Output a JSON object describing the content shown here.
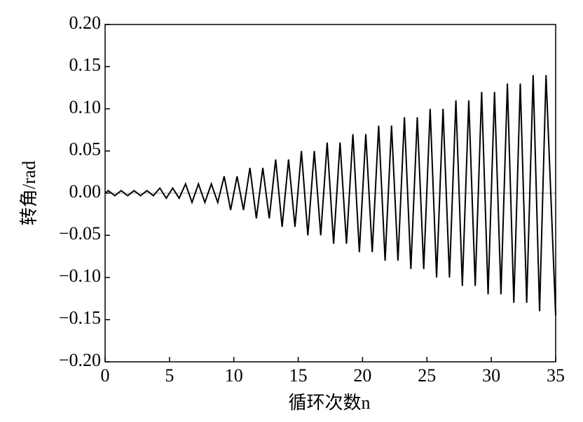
{
  "chart_data": {
    "type": "line",
    "xlabel": "循环次数n",
    "ylabel": "转角/rad",
    "x": [
      0,
      0.25,
      0.75,
      1.25,
      1.75,
      2.25,
      2.75,
      3.25,
      3.75,
      4.25,
      4.75,
      5.25,
      5.75,
      6.25,
      6.75,
      7.25,
      7.75,
      8.25,
      8.75,
      9.25,
      9.75,
      10.25,
      10.75,
      11.25,
      11.75,
      12.25,
      12.75,
      13.25,
      13.75,
      14.25,
      14.75,
      15.25,
      15.75,
      16.25,
      16.75,
      17.25,
      17.75,
      18.25,
      18.75,
      19.25,
      19.75,
      20.25,
      20.75,
      21.25,
      21.75,
      22.25,
      22.75,
      23.25,
      23.75,
      24.25,
      24.75,
      25.25,
      25.75,
      26.25,
      26.75,
      27.25,
      27.75,
      28.25,
      28.75,
      29.25,
      29.75,
      30.25,
      30.75,
      31.25,
      31.75,
      32.25,
      32.75,
      33.25,
      33.75,
      34.25,
      35
    ],
    "values": [
      0,
      0.003,
      -0.003,
      0.003,
      -0.003,
      0.003,
      -0.003,
      0.003,
      -0.003,
      0.006,
      -0.006,
      0.006,
      -0.006,
      0.011,
      -0.011,
      0.011,
      -0.011,
      0.011,
      -0.011,
      0.02,
      -0.02,
      0.02,
      -0.02,
      0.03,
      -0.03,
      0.03,
      -0.03,
      0.04,
      -0.04,
      0.04,
      -0.04,
      0.05,
      -0.05,
      0.05,
      -0.05,
      0.06,
      -0.06,
      0.06,
      -0.06,
      0.07,
      -0.07,
      0.07,
      -0.07,
      0.08,
      -0.08,
      0.08,
      -0.08,
      0.09,
      -0.09,
      0.09,
      -0.09,
      0.1,
      -0.1,
      0.1,
      -0.1,
      0.11,
      -0.11,
      0.11,
      -0.11,
      0.12,
      -0.12,
      0.12,
      -0.12,
      0.13,
      -0.13,
      0.13,
      -0.13,
      0.14,
      -0.14,
      0.14,
      -0.145
    ],
    "color": "#000000",
    "xlim": [
      0,
      35
    ],
    "xticks": [
      0,
      5,
      10,
      15,
      20,
      25,
      30,
      35
    ],
    "ylim": [
      -0.2,
      0.2
    ],
    "yticks": [
      {
        "value": -0.2,
        "label": "−0.20"
      },
      {
        "value": -0.15,
        "label": "−0.15"
      },
      {
        "value": -0.1,
        "label": "−0.10"
      },
      {
        "value": -0.05,
        "label": "−0.05"
      },
      {
        "value": 0,
        "label": "0.00"
      },
      {
        "value": 0.05,
        "label": "0.05"
      },
      {
        "value": 0.1,
        "label": "0.10"
      },
      {
        "value": 0.15,
        "label": "0.15"
      },
      {
        "value": 0.2,
        "label": "0.20"
      }
    ]
  }
}
